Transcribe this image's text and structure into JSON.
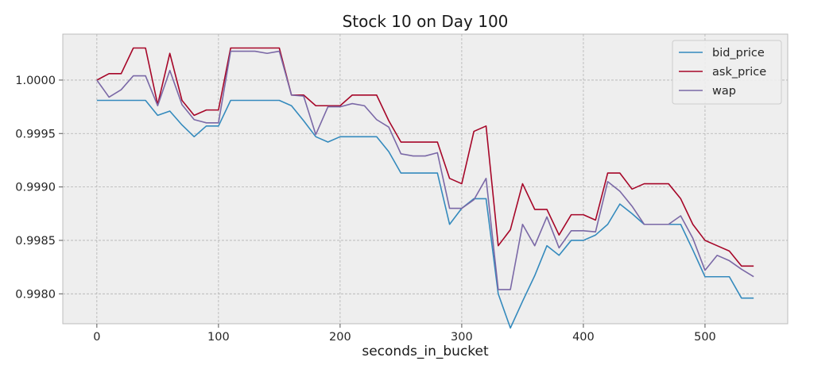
{
  "chart_data": {
    "type": "line",
    "title": "Stock 10 on Day 100",
    "xlabel": "seconds_in_bucket",
    "ylabel": "",
    "xlim": [
      -28,
      568
    ],
    "ylim": [
      0.99772,
      1.00043
    ],
    "xticks": [
      0,
      100,
      200,
      300,
      400,
      500
    ],
    "xtick_labels": [
      "0",
      "100",
      "200",
      "300",
      "400",
      "500"
    ],
    "yticks": [
      0.998,
      0.9985,
      0.999,
      0.9995,
      1.0
    ],
    "ytick_labels": [
      "0.9980",
      "0.9985",
      "0.9990",
      "0.9995",
      "1.0000"
    ],
    "grid": true,
    "legend_position": "top-right",
    "x": [
      0,
      10,
      20,
      30,
      40,
      50,
      60,
      70,
      80,
      90,
      100,
      110,
      120,
      130,
      140,
      150,
      160,
      170,
      180,
      190,
      200,
      210,
      220,
      230,
      240,
      250,
      260,
      270,
      280,
      290,
      300,
      310,
      320,
      330,
      340,
      350,
      360,
      370,
      380,
      390,
      400,
      410,
      420,
      430,
      440,
      450,
      460,
      470,
      480,
      490,
      500,
      510,
      520,
      530,
      540
    ],
    "series": [
      {
        "name": "bid_price",
        "color": "#348ABD",
        "values": [
          0.99981,
          0.99981,
          0.99981,
          0.99981,
          0.99981,
          0.99967,
          0.99971,
          0.99958,
          0.99947,
          0.99957,
          0.99957,
          0.99981,
          0.99981,
          0.99981,
          0.99981,
          0.99981,
          0.99976,
          0.99962,
          0.99947,
          0.99942,
          0.99947,
          0.99947,
          0.99947,
          0.99947,
          0.99933,
          0.99913,
          0.99913,
          0.99913,
          0.99913,
          0.99865,
          0.9988,
          0.99889,
          0.99889,
          0.998,
          0.99768,
          0.99793,
          0.99817,
          0.99845,
          0.99836,
          0.9985,
          0.9985,
          0.99855,
          0.99865,
          0.99884,
          0.99875,
          0.99865,
          0.99865,
          0.99865,
          0.99865,
          0.99841,
          0.99816,
          0.99816,
          0.99816,
          0.99796,
          0.99796
        ]
      },
      {
        "name": "ask_price",
        "color": "#A60628",
        "values": [
          1.0,
          1.00006,
          1.00006,
          1.0003,
          1.0003,
          0.99977,
          1.00025,
          0.99981,
          0.99967,
          0.99972,
          0.99972,
          1.0003,
          1.0003,
          1.0003,
          1.0003,
          1.0003,
          0.99986,
          0.99986,
          0.99976,
          0.99976,
          0.99976,
          0.99986,
          0.99986,
          0.99986,
          0.99962,
          0.99942,
          0.99942,
          0.99942,
          0.99942,
          0.99908,
          0.99903,
          0.99952,
          0.99957,
          0.99845,
          0.9986,
          0.99903,
          0.99879,
          0.99879,
          0.99855,
          0.99874,
          0.99874,
          0.99869,
          0.99913,
          0.99913,
          0.99898,
          0.99903,
          0.99903,
          0.99903,
          0.99889,
          0.99865,
          0.9985,
          0.99845,
          0.9984,
          0.99826,
          0.99826
        ]
      },
      {
        "name": "wap",
        "color": "#7A68A6",
        "values": [
          1.0,
          0.99984,
          0.99991,
          1.00004,
          1.00004,
          0.99976,
          1.00009,
          0.99977,
          0.99963,
          0.9996,
          0.9996,
          1.00027,
          1.00027,
          1.00027,
          1.00025,
          1.00027,
          0.99986,
          0.99985,
          0.99949,
          0.99975,
          0.99975,
          0.99978,
          0.99976,
          0.99963,
          0.99956,
          0.99931,
          0.99929,
          0.99929,
          0.99932,
          0.9988,
          0.9988,
          0.99888,
          0.99908,
          0.99804,
          0.99804,
          0.99865,
          0.99845,
          0.99872,
          0.99843,
          0.99859,
          0.99859,
          0.99858,
          0.99905,
          0.99896,
          0.99882,
          0.99865,
          0.99865,
          0.99865,
          0.99873,
          0.99852,
          0.99822,
          0.99836,
          0.99831,
          0.99823,
          0.99816
        ]
      }
    ]
  }
}
